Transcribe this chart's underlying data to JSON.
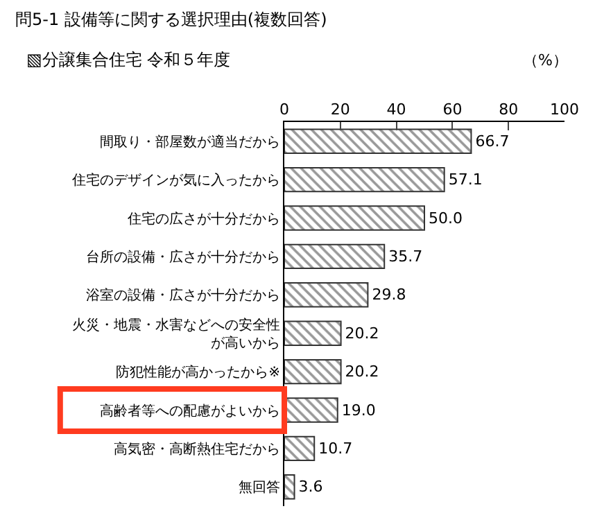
{
  "chart_data": {
    "type": "bar",
    "orientation": "horizontal",
    "title": "問5-1 設備等に関する選択理由(複数回答)",
    "subtitle": "▧分譲集合住宅 令和５年度",
    "categories": [
      "間取り・部屋数が適当だから",
      "住宅のデザインが気に入ったから",
      "住宅の広さが十分だから",
      "台所の設備・広さが十分だから",
      "浴室の設備・広さが十分だから",
      "火災・地震・水害などへの安全性が高いから",
      "防犯性能が高かったから※",
      "高齢者等への配慮がよいから",
      "高気密・高断熱住宅だから",
      "無回答"
    ],
    "values": [
      66.7,
      57.1,
      50.0,
      35.7,
      29.8,
      20.2,
      20.2,
      19.0,
      10.7,
      3.6
    ],
    "value_labels": [
      "66.7",
      "57.1",
      "50.0",
      "35.7",
      "29.8",
      "20.2",
      "20.2",
      "19.0",
      "10.7",
      "3.6"
    ],
    "color": "#333333",
    "xlim": [
      0,
      100
    ],
    "xticks": [
      0,
      20,
      40,
      60,
      80,
      100
    ],
    "annotations": [
      "（%）"
    ],
    "grid": false,
    "legend": false
  }
}
